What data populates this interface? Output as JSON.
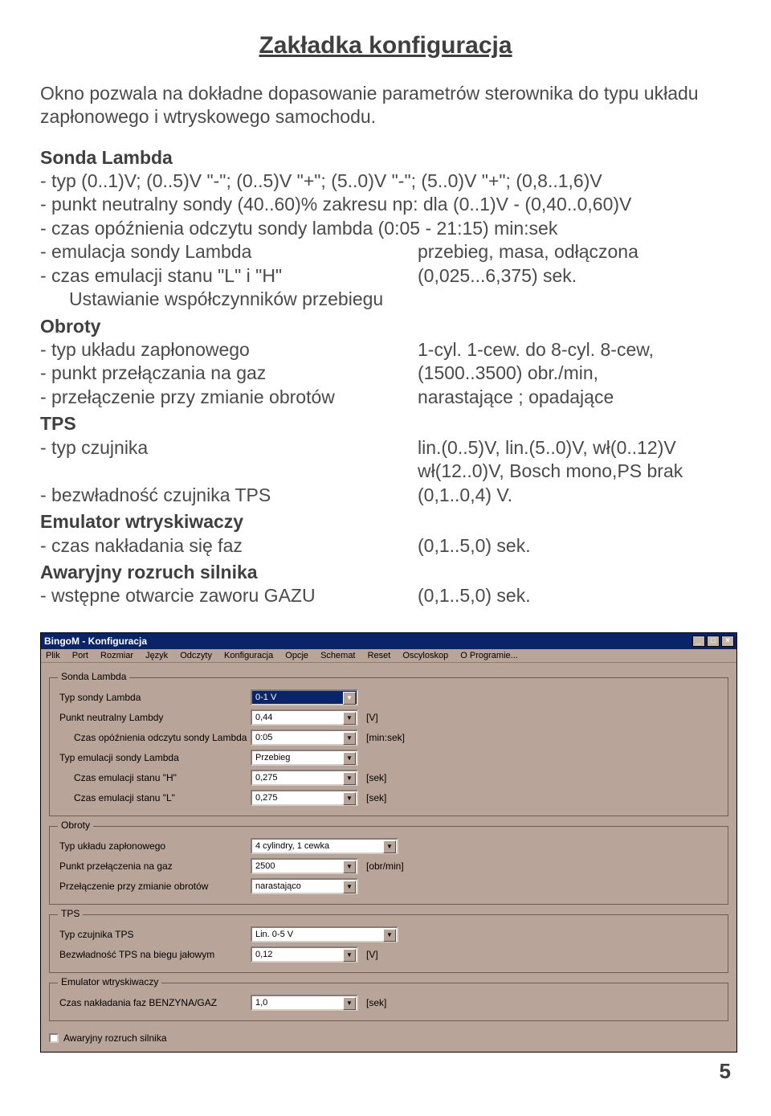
{
  "page": {
    "number": "5"
  },
  "doc": {
    "title": "Zakładka konfiguracja",
    "intro": "Okno pozwala na dokładne dopasowanie parametrów sterownika do typu układu zapłonowego i wtryskowego samochodu.",
    "sections": {
      "sonda": {
        "head": "Sonda Lambda",
        "r1": {
          "l": "- typ (0..1)V; (0..5)V \"-\"; (0..5)V \"+\"; (5..0)V \"-\"; (5..0)V \"+\"; (0,8..1,6)V",
          "r": ""
        },
        "r2": {
          "l": "- punkt neutralny sondy (40..60)% zakresu np: dla (0..1)V - (0,40..0,60)V",
          "r": ""
        },
        "r3": {
          "l": "- czas opóźnienia odczytu sondy lambda (0:05 - 21:15) min:sek",
          "r": ""
        },
        "r4": {
          "l": "- emulacja sondy Lambda",
          "r": "przebieg, masa, odłączona"
        },
        "r5": {
          "l": "- czas emulacji stanu \"L\" i \"H\"",
          "r": "(0,025...6,375) sek."
        },
        "r6": {
          "l": "Ustawianie współczynników przebiegu",
          "r": ""
        }
      },
      "obroty": {
        "head": "Obroty",
        "r1": {
          "l": "- typ układu zapłonowego",
          "r": "1-cyl. 1-cew. do 8-cyl. 8-cew,"
        },
        "r2": {
          "l": "- punkt przełączania na gaz",
          "r": "(1500..3500) obr./min,"
        },
        "r3": {
          "l": "- przełączenie przy zmianie obrotów",
          "r": "narastające ; opadające"
        }
      },
      "tps": {
        "head": "TPS",
        "r1": {
          "l": "- typ czujnika",
          "r": "lin.(0..5)V, lin.(5..0)V, wł(0..12)V"
        },
        "r1b": {
          "l": "",
          "r": "wł(12..0)V, Bosch mono,PS brak"
        },
        "r2": {
          "l": "- bezwładność czujnika TPS",
          "r": "(0,1..0,4) V."
        }
      },
      "emul": {
        "head": "Emulator wtryskiwaczy",
        "r1": {
          "l": "- czas nakładania się faz",
          "r": "(0,1..5,0) sek."
        }
      },
      "awar": {
        "head": "Awaryjny rozruch silnika",
        "r1": {
          "l": "- wstępne otwarcie zaworu GAZU",
          "r": "(0,1..5,0) sek."
        }
      }
    }
  },
  "win": {
    "title": "BingoM - Konfiguracja",
    "menu": [
      "Plik",
      "Port",
      "Rozmiar",
      "Język",
      "Odczyty",
      "Konfiguracja",
      "Opcje",
      "Schemat",
      "Reset",
      "Oscyloskop",
      "O Programie..."
    ],
    "btn_min": "_",
    "btn_max": "□",
    "btn_close": "×",
    "groups": {
      "sonda": {
        "title": "Sonda Lambda",
        "rows": [
          {
            "label": "Typ sondy Lambda",
            "value": "0-1 V",
            "unit": "",
            "wide": false,
            "hl": true
          },
          {
            "label": "Punkt neutralny Lambdy",
            "value": "0,44",
            "unit": "[V]",
            "wide": false
          },
          {
            "label": "Czas opóźnienia odczytu sondy Lambda",
            "value": "0:05",
            "unit": "[min:sek]",
            "wide": false,
            "indent": true
          },
          {
            "label": "Typ emulacji sondy Lambda",
            "value": "Przebieg",
            "unit": "",
            "wide": false
          },
          {
            "label": "Czas emulacji stanu \"H\"",
            "value": "0,275",
            "unit": "[sek]",
            "wide": false,
            "indent": true
          },
          {
            "label": "Czas emulacji stanu \"L\"",
            "value": "0,275",
            "unit": "[sek]",
            "wide": false,
            "indent": true
          }
        ]
      },
      "obroty": {
        "title": "Obroty",
        "rows": [
          {
            "label": "Typ układu zapłonowego",
            "value": "4 cylindry, 1 cewka",
            "unit": "",
            "wide": true
          },
          {
            "label": "Punkt przełączenia na gaz",
            "value": "2500",
            "unit": "[obr/min]",
            "wide": false
          },
          {
            "label": "Przełączenie przy zmianie obrotów",
            "value": "narastająco",
            "unit": "",
            "wide": false
          }
        ]
      },
      "tps": {
        "title": "TPS",
        "rows": [
          {
            "label": "Typ czujnika TPS",
            "value": "Lin. 0-5 V",
            "unit": "",
            "wide": true
          },
          {
            "label": "Bezwładność TPS na biegu jałowym",
            "value": "0,12",
            "unit": "[V]",
            "wide": false
          }
        ]
      },
      "emul": {
        "title": "Emulator wtryskiwaczy",
        "rows": [
          {
            "label": "Czas nakładania faz BENZYNA/GAZ",
            "value": "1,0",
            "unit": "[sek]",
            "wide": false
          }
        ]
      }
    },
    "checkbox": "Awaryjny rozruch silnika"
  },
  "colors": {
    "text": "#4a4a4a",
    "panel_bg": "#b8a498",
    "titlebar_bg": "#0a246a",
    "combo_highlight_bg": "#0a246a",
    "combo_highlight_fg": "#ffffff"
  }
}
